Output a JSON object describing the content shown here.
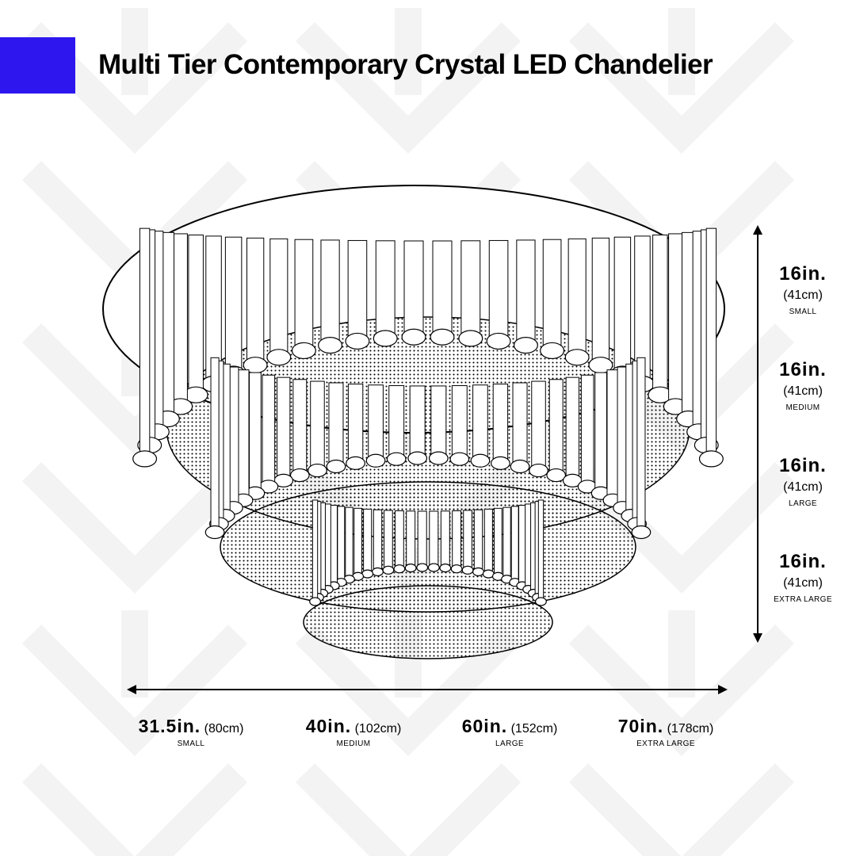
{
  "title": "Multi Tier Contemporary Crystal LED Chandelier",
  "colors": {
    "accent": "#2d17ee",
    "pattern": "#f3f3f3",
    "line": "#000000",
    "background": "#ffffff"
  },
  "width_dimensions": [
    {
      "imperial": "31.5in.",
      "metric": "(80cm)",
      "size": "SMALL"
    },
    {
      "imperial": "40in.",
      "metric": "(102cm)",
      "size": "MEDIUM"
    },
    {
      "imperial": "60in.",
      "metric": "(152cm)",
      "size": "LARGE"
    },
    {
      "imperial": "70in.",
      "metric": "(178cm)",
      "size": "EXTRA LARGE"
    }
  ],
  "height_dimensions": [
    {
      "imperial": "16in.",
      "metric": "(41cm)",
      "size": "SMALL"
    },
    {
      "imperial": "16in.",
      "metric": "(41cm)",
      "size": "MEDIUM"
    },
    {
      "imperial": "16in.",
      "metric": "(41cm)",
      "size": "LARGE"
    },
    {
      "imperial": "16in.",
      "metric": "(41cm)",
      "size": "EXTRA LARGE"
    }
  ],
  "icons": {
    "width_arrow": "double-headed-horizontal-arrow",
    "height_arrow": "double-headed-vertical-arrow"
  }
}
